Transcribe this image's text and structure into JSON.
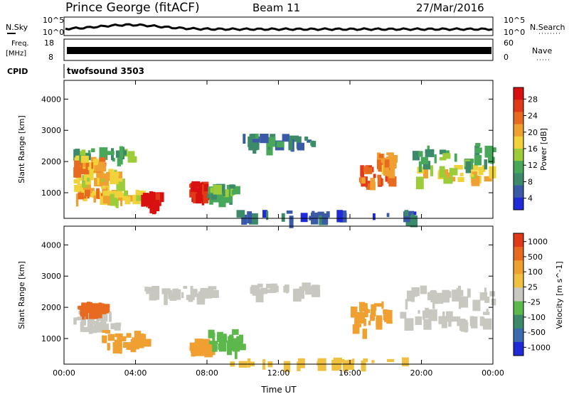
{
  "header": {
    "station": "Prince George (fitACF)",
    "beam": "Beam 11",
    "date": "27/Mar/2016"
  },
  "strips": {
    "nsky_label": "N.Sky",
    "nsky_ticks": [
      "10^5",
      "10^0"
    ],
    "nsearch_label": "N.Search",
    "nsearch_ticks": [
      "10^5",
      "10^0"
    ],
    "freq_label_1": "Freq.",
    "freq_label_2": "[MHz]",
    "freq_ticks": [
      "18",
      "8"
    ],
    "nave_label": "Nave",
    "nave_ticks": [
      "60",
      "0"
    ],
    "cpid_label": "CPID",
    "cpid_value": "twofsound 3503"
  },
  "chart_data": [
    {
      "type": "heatmap",
      "title": "",
      "xlabel": "",
      "ylabel": "Slant Range [km]",
      "x_ticks": [
        "00:00",
        "04:00",
        "08:00",
        "12:00",
        "16:00",
        "20:00",
        "00:00"
      ],
      "y_ticks": [
        1000,
        2000,
        3000,
        4000
      ],
      "ylim": [
        180,
        4600
      ],
      "xlim_hours": [
        0,
        24
      ],
      "colorbar": {
        "label": "Power [dB]",
        "ticks": [
          "4",
          "8",
          "12",
          "16",
          "20",
          "24",
          "28"
        ],
        "colors": [
          "#1f2ad8",
          "#3a5aa8",
          "#3c8a6a",
          "#48a85a",
          "#9ccc3a",
          "#f0d23a",
          "#f0a030",
          "#e86a20",
          "#e03a18",
          "#d81010"
        ]
      },
      "regions": [
        {
          "t0": 0.5,
          "t1": 2.5,
          "r0": 900,
          "r1": 1300,
          "level": 20
        },
        {
          "t0": 2.0,
          "t1": 4.5,
          "r0": 800,
          "r1": 1100,
          "level": 16
        },
        {
          "t0": 4.3,
          "t1": 5.2,
          "r0": 700,
          "r1": 1100,
          "level": 28
        },
        {
          "t0": 0.5,
          "t1": 3.0,
          "r0": 1400,
          "r1": 1800,
          "level": 16
        },
        {
          "t0": 0.5,
          "t1": 4.0,
          "r0": 2100,
          "r1": 2500,
          "level": 12
        },
        {
          "t0": 0.5,
          "t1": 2.0,
          "r0": 1800,
          "r1": 2200,
          "level": 20
        },
        {
          "t0": 7.0,
          "t1": 7.8,
          "r0": 900,
          "r1": 1400,
          "level": 28
        },
        {
          "t0": 8.0,
          "t1": 9.5,
          "r0": 900,
          "r1": 1300,
          "level": 12
        },
        {
          "t0": 16.5,
          "t1": 18.2,
          "r0": 1300,
          "r1": 1900,
          "level": 24
        },
        {
          "t0": 17.5,
          "t1": 18.5,
          "r0": 1800,
          "r1": 2300,
          "level": 20
        },
        {
          "t0": 19.5,
          "t1": 24.0,
          "r0": 1500,
          "r1": 1900,
          "level": 16
        },
        {
          "t0": 19.5,
          "t1": 24.0,
          "r0": 2000,
          "r1": 2600,
          "level": 12
        },
        {
          "t0": 10.0,
          "t1": 14.0,
          "r0": 2600,
          "r1": 2900,
          "level": 8
        },
        {
          "t0": 9.0,
          "t1": 20.0,
          "r0": 250,
          "r1": 450,
          "level": 4
        }
      ]
    },
    {
      "type": "heatmap",
      "title": "",
      "xlabel": "Time UT",
      "ylabel": "Slant Range [km]",
      "x_ticks": [
        "00:00",
        "04:00",
        "08:00",
        "12:00",
        "16:00",
        "20:00",
        "00:00"
      ],
      "y_ticks": [
        1000,
        2000,
        3000,
        4000
      ],
      "ylim": [
        180,
        4600
      ],
      "xlim_hours": [
        0,
        24
      ],
      "colorbar": {
        "label": "Velocity [m s^-1]",
        "ticks": [
          "1000",
          "500",
          "100",
          "25",
          "-25",
          "-100",
          "-500",
          "-1000"
        ],
        "colors": [
          "#1f2ad8",
          "#3c6ab0",
          "#3c8a6a",
          "#5cb84a",
          "#c8c8c0",
          "#f0c040",
          "#f0a030",
          "#e86a20",
          "#e03a18"
        ]
      },
      "regions": [
        {
          "t0": 0.5,
          "t1": 3.0,
          "r0": 1300,
          "r1": 2000,
          "level": "#c8c8c0"
        },
        {
          "t0": 2.0,
          "t1": 4.5,
          "r0": 800,
          "r1": 1300,
          "level": "#f0a030"
        },
        {
          "t0": 0.5,
          "t1": 2.5,
          "r0": 1900,
          "r1": 2200,
          "level": "#e86a20"
        },
        {
          "t0": 4.5,
          "t1": 8.5,
          "r0": 2400,
          "r1": 2700,
          "level": "#c8c8c0"
        },
        {
          "t0": 7.0,
          "t1": 8.0,
          "r0": 700,
          "r1": 1000,
          "level": "#f0a030"
        },
        {
          "t0": 8.0,
          "t1": 9.8,
          "r0": 700,
          "r1": 1300,
          "level": "#5cb84a"
        },
        {
          "t0": 16.0,
          "t1": 18.2,
          "r0": 1300,
          "r1": 2200,
          "level": "#f0a030"
        },
        {
          "t0": 18.5,
          "t1": 24.0,
          "r0": 1500,
          "r1": 2000,
          "level": "#c8c8c0"
        },
        {
          "t0": 19.0,
          "t1": 24.0,
          "r0": 2200,
          "r1": 2700,
          "level": "#c8c8c0"
        },
        {
          "t0": 10.0,
          "t1": 14.0,
          "r0": 2500,
          "r1": 2800,
          "level": "#c8c8c0"
        },
        {
          "t0": 9.0,
          "t1": 20.0,
          "r0": 250,
          "r1": 400,
          "level": "#f0c040"
        }
      ]
    }
  ]
}
